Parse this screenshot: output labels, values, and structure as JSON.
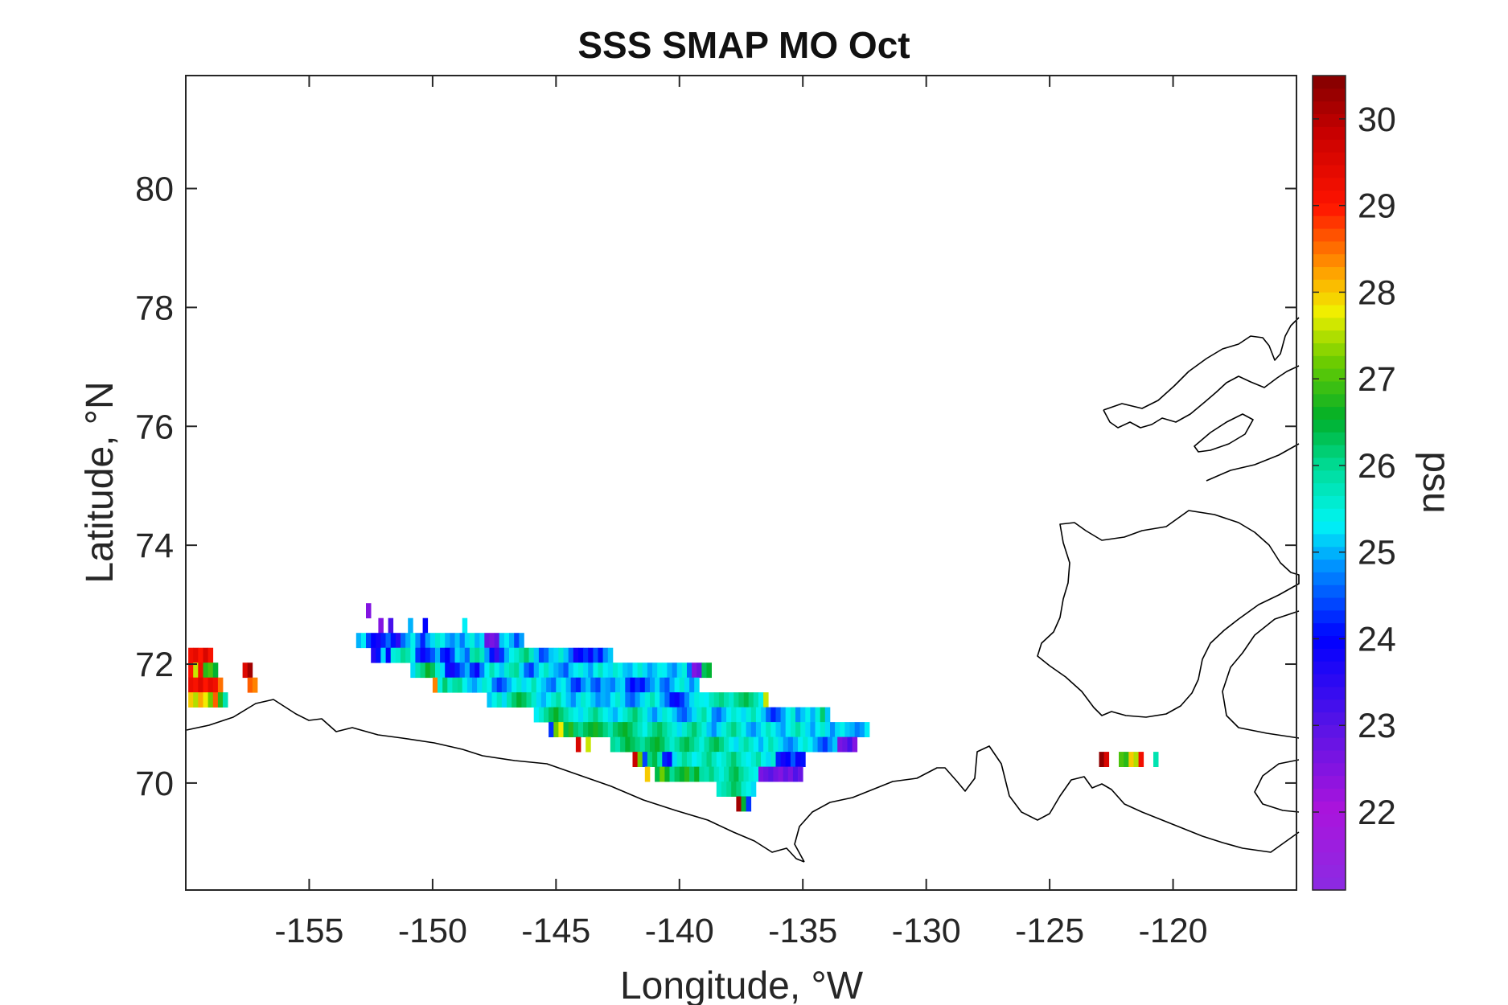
{
  "chart_data": {
    "type": "heatmap",
    "title": "SSS SMAP MO Oct",
    "xlabel": "Longitude, °W",
    "ylabel": "Latitude, °N",
    "colorbar_label": "psu",
    "xlim": [
      -160,
      -115
    ],
    "ylim": [
      68.2,
      81.9
    ],
    "xticks": [
      -155,
      -150,
      -145,
      -140,
      -135,
      -130,
      -125,
      -120
    ],
    "yticks": [
      70,
      72,
      74,
      76,
      78,
      80
    ],
    "clim": [
      21.1,
      30.5
    ],
    "cticks": [
      22,
      23,
      24,
      25,
      26,
      27,
      28,
      29,
      30
    ],
    "colormap": "jet-like (violet → blue → cyan → green → yellow → red → dark red)",
    "grid": false,
    "region_rows": [
      {
        "lat": 72.9,
        "lon_start": -152.7,
        "values": [
          22.5
        ]
      },
      {
        "lat": 72.65,
        "lon_start": -152.2,
        "values": [
          22.5,
          null,
          23.2,
          null,
          null,
          null,
          25.0,
          null,
          null,
          24.0,
          null,
          null,
          null,
          null,
          null,
          null,
          null,
          25.3
        ]
      },
      {
        "lat": 72.4,
        "lon_start": -153.1,
        "values": [
          25.0,
          25.3,
          24.4,
          24.0,
          23.8,
          24.2,
          24.6,
          24.1,
          23.5,
          24.6,
          25.0,
          25.4,
          24.8,
          24.2,
          24.9,
          25.2,
          25.6,
          25.4,
          25.0,
          24.8,
          25.1,
          24.7,
          25.2,
          25.5,
          25.0,
          25.2,
          22.8,
          22.6,
          22.9,
          25.1,
          25.3,
          25.0,
          24.4,
          24.9
        ]
      },
      {
        "lat": 72.15,
        "lon_start": -152.5,
        "values": [
          23.6,
          24.1,
          25.2,
          24.0,
          25.5,
          25.6,
          26.0,
          25.8,
          25.4,
          24.3,
          23.9,
          24.2,
          24.5,
          25.0,
          24.2,
          24.0,
          24.4,
          25.2,
          25.0,
          24.6,
          25.8,
          26.0,
          25.7,
          24.9,
          24.1,
          23.4,
          24.3,
          25.0,
          25.4,
          25.6,
          25.9,
          26.2,
          25.7,
          25.1,
          24.4,
          24.6,
          25.1,
          25.2,
          25.6,
          25.1,
          24.6,
          23.8,
          24.0,
          24.3,
          23.9,
          24.5,
          24.1,
          24.8,
          25.1
        ]
      },
      {
        "lat": 71.9,
        "lon_start": -150.9,
        "values": [
          25.2,
          25.8,
          26.1,
          26.6,
          26.3,
          25.6,
          25.2,
          24.1,
          23.8,
          24.2,
          24.6,
          25.0,
          24.3,
          23.9,
          24.7,
          25.3,
          25.8,
          25.4,
          25.1,
          25.6,
          25.8,
          26.0,
          25.2,
          24.6,
          24.3,
          25.0,
          25.4,
          25.7,
          25.2,
          25.0,
          24.8,
          24.5,
          25.1,
          25.3,
          25.5,
          25.2,
          24.9,
          25.4,
          25.7,
          25.3,
          25.2,
          25.6,
          25.4,
          25.1,
          25.0,
          25.3,
          25.6,
          25.2,
          24.9,
          25.1,
          25.4,
          25.3,
          25.0,
          24.8,
          25.2,
          25.5,
          24.6,
          22.5,
          22.8,
          26.3,
          26.5
        ]
      },
      {
        "lat": 71.65,
        "lon_start": -150.0,
        "values": [
          28.4,
          25.5,
          26.2,
          25.6,
          25.9,
          26.0,
          25.4,
          25.1,
          24.9,
          25.2,
          25.6,
          25.4,
          24.7,
          24.3,
          24.6,
          25.0,
          25.3,
          25.6,
          25.2,
          25.4,
          25.8,
          25.3,
          25.1,
          24.8,
          24.6,
          25.2,
          25.4,
          25.0,
          24.4,
          24.2,
          24.8,
          25.1,
          24.6,
          24.4,
          25.0,
          24.9,
          24.7,
          25.1,
          25.2,
          24.4,
          24.0,
          24.3,
          24.1,
          24.6,
          24.9,
          25.2,
          24.7,
          24.5,
          25.0,
          25.3,
          25.6,
          25.2,
          24.8,
          25.2
        ]
      },
      {
        "lat": 71.4,
        "lon_start": -147.8,
        "values": [
          25.1,
          25.4,
          25.7,
          25.2,
          25.8,
          26.2,
          26.5,
          26.3,
          26.0,
          25.6,
          25.2,
          25.0,
          25.3,
          25.6,
          25.9,
          25.4,
          25.1,
          24.8,
          25.2,
          25.6,
          25.4,
          25.1,
          24.8,
          25.0,
          24.9,
          25.3,
          25.6,
          25.2,
          24.7,
          24.5,
          24.9,
          25.2,
          25.5,
          25.8,
          25.4,
          25.0,
          24.6,
          24.1,
          23.9,
          24.3,
          24.8,
          25.2,
          25.5,
          25.4,
          25.3,
          25.7,
          25.9,
          26.1,
          25.8,
          25.6,
          26.0,
          26.2,
          26.4,
          26.1,
          25.8,
          25.4,
          27.6
        ]
      },
      {
        "lat": 71.15,
        "lon_start": -145.9,
        "values": [
          25.3,
          25.6,
          26.0,
          26.3,
          26.6,
          26.2,
          25.9,
          25.6,
          25.4,
          25.2,
          25.5,
          25.8,
          26.1,
          25.7,
          25.4,
          25.2,
          25.0,
          25.3,
          25.6,
          25.9,
          26.2,
          25.8,
          25.5,
          25.1,
          24.8,
          25.2,
          25.6,
          25.4,
          25.1,
          24.7,
          24.5,
          24.9,
          25.2,
          25.6,
          25.9,
          25.4,
          24.8,
          24.6,
          25.0,
          25.3,
          25.6,
          25.4,
          25.2,
          25.5,
          25.8,
          25.4,
          25.1,
          24.6,
          24.2,
          24.5,
          24.9,
          25.3,
          25.6,
          24.8,
          25.1,
          25.4,
          25.0,
          25.5,
          26.2,
          25.1
        ]
      },
      {
        "lat": 70.9,
        "lon_start": -145.3,
        "values": [
          24.3,
          27.2,
          27.8,
          26.4,
          26.8,
          26.2,
          26.0,
          26.3,
          26.5,
          26.7,
          26.4,
          26.1,
          25.8,
          26.2,
          26.4,
          26.6,
          26.3,
          26.0,
          25.7,
          25.4,
          25.8,
          26.1,
          26.3,
          26.0,
          25.7,
          25.5,
          25.2,
          25.6,
          25.9,
          26.2,
          25.8,
          25.5,
          25.1,
          24.8,
          25.2,
          25.5,
          25.8,
          26.1,
          25.7,
          25.4,
          25.0,
          24.8,
          25.1,
          25.4,
          25.7,
          25.4,
          25.1,
          24.9,
          25.3,
          25.6,
          25.9,
          25.5,
          25.2,
          24.9,
          25.3,
          25.6,
          25.2,
          24.8,
          25.2,
          25.4,
          25.1,
          25.0,
          24.7,
          24.9,
          25.3
        ]
      },
      {
        "lat": 70.65,
        "lon_start": -144.2,
        "values": [
          29.6,
          null,
          27.6,
          null,
          null,
          null,
          null,
          26.0,
          25.8,
          26.2,
          26.5,
          26.3,
          26.1,
          25.9,
          26.2,
          26.4,
          26.6,
          26.3,
          25.9,
          25.6,
          25.9,
          26.2,
          26.4,
          26.1,
          25.8,
          25.5,
          25.9,
          26.2,
          26.4,
          26.1,
          25.7,
          25.4,
          25.2,
          25.6,
          25.9,
          25.6,
          25.3,
          25.0,
          25.4,
          25.8,
          25.5,
          25.2,
          24.9,
          24.7,
          25.0,
          25.3,
          25.6,
          25.3,
          25.0,
          24.6,
          24.3,
          24.8,
          25.1,
          22.6,
          22.8,
          23.2,
          22.5
        ]
      },
      {
        "lat": 70.4,
        "lon_start": -141.9,
        "values": [
          29.8,
          27.2,
          24.4,
          26.1,
          26.4,
          25.8,
          24.2,
          23.9,
          25.2,
          25.6,
          26.0,
          25.7,
          25.3,
          25.5,
          25.8,
          26.1,
          25.7,
          25.4,
          25.6,
          25.9,
          26.2,
          25.8,
          25.5,
          25.3,
          25.6,
          25.9,
          25.4,
          25.2,
          25.6,
          24.2,
          23.8,
          24.0,
          24.5,
          23.9,
          24.1
        ]
      },
      {
        "lat": 70.15,
        "lon_start": -141.4,
        "values": [
          28.0,
          null,
          26.4,
          27.2,
          26.6,
          26.0,
          26.3,
          26.5,
          26.8,
          26.2,
          26.6,
          25.9,
          25.8,
          26.1,
          25.7,
          25.5,
          25.8,
          26.2,
          26.4,
          26.0,
          25.7,
          25.5,
          25.4,
          22.6,
          22.8,
          23.0,
          22.7,
          22.5,
          22.9,
          22.6,
          23.1,
          22.8
        ]
      },
      {
        "lat": 69.9,
        "lon_start": -138.5,
        "values": [
          25.6,
          25.8,
          26.0,
          26.3,
          26.1,
          25.6,
          25.4,
          25.2
        ]
      },
      {
        "lat": 69.65,
        "lon_start": -137.7,
        "values": [
          30.2,
          26.5,
          24.3
        ]
      },
      {
        "lat": 72.15,
        "lon_start": -159.9,
        "values": [
          29.2,
          29.4,
          29.0,
          29.6,
          29.1
        ]
      },
      {
        "lat": 71.9,
        "lon_start": -159.9,
        "values": [
          29.0,
          27.6,
          29.2,
          26.8,
          27.0,
          26.5,
          null,
          null,
          null,
          null,
          null,
          29.5,
          30.2
        ]
      },
      {
        "lat": 71.65,
        "lon_start": -159.9,
        "values": [
          29.3,
          29.1,
          29.5,
          29.0,
          29.4,
          29.2,
          28.5,
          null,
          null,
          null,
          null,
          null,
          28.6,
          28.4
        ]
      },
      {
        "lat": 71.4,
        "lon_start": -159.9,
        "values": [
          28.0,
          27.5,
          28.2,
          27.8,
          27.2,
          28.6,
          26.8,
          25.8
        ]
      },
      {
        "lat": 70.4,
        "lon_start": -123.0,
        "values": [
          30.4,
          29.6,
          null,
          null,
          27.0,
          26.8,
          28.0,
          27.5,
          29.2,
          null,
          null,
          25.8
        ]
      }
    ]
  }
}
